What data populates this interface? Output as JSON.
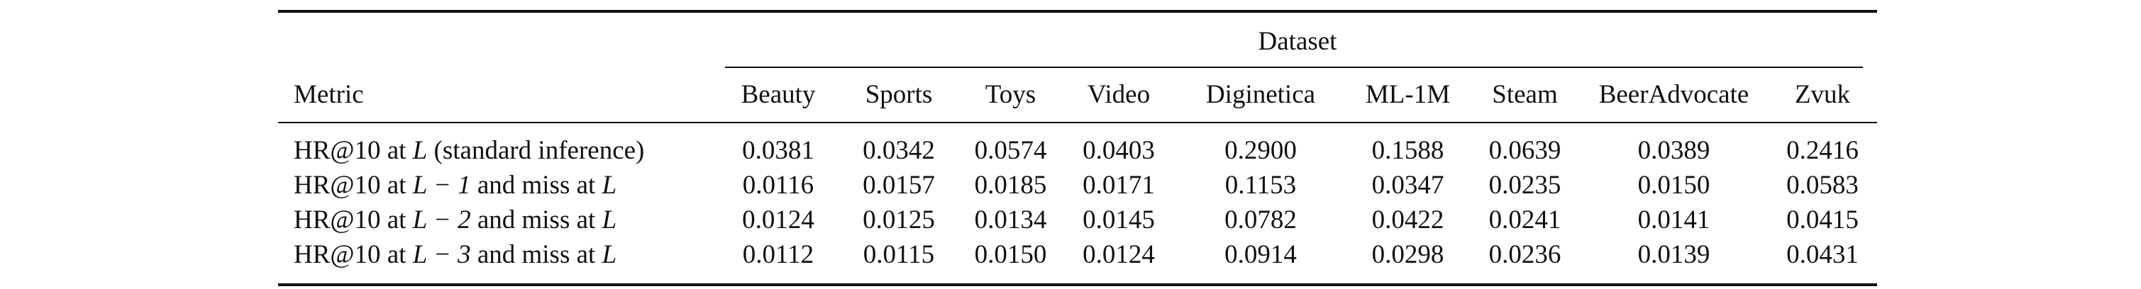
{
  "table": {
    "group_header": "Dataset",
    "metric_header": "Metric",
    "columns": [
      "Beauty",
      "Sports",
      "Toys",
      "Video",
      "Diginetica",
      "ML-1M",
      "Steam",
      "BeerAdvocate",
      "Zvuk"
    ],
    "rows": [
      {
        "metric_prefix": "HR@10 at ",
        "metric_var": "L",
        "metric_suffix": " (standard inference)",
        "values": [
          "0.0381",
          "0.0342",
          "0.0574",
          "0.0403",
          "0.2900",
          "0.1588",
          "0.0639",
          "0.0389",
          "0.2416"
        ]
      },
      {
        "metric_prefix": "HR@10 at ",
        "metric_var": "L − 1",
        "metric_suffix": " and miss at ",
        "metric_var2": "L",
        "values": [
          "0.0116",
          "0.0157",
          "0.0185",
          "0.0171",
          "0.1153",
          "0.0347",
          "0.0235",
          "0.0150",
          "0.0583"
        ]
      },
      {
        "metric_prefix": "HR@10 at ",
        "metric_var": "L − 2",
        "metric_suffix": " and miss at ",
        "metric_var2": "L",
        "values": [
          "0.0124",
          "0.0125",
          "0.0134",
          "0.0145",
          "0.0782",
          "0.0422",
          "0.0241",
          "0.0141",
          "0.0415"
        ]
      },
      {
        "metric_prefix": "HR@10 at ",
        "metric_var": "L − 3",
        "metric_suffix": " and miss at ",
        "metric_var2": "L",
        "values": [
          "0.0112",
          "0.0115",
          "0.0150",
          "0.0124",
          "0.0914",
          "0.0298",
          "0.0236",
          "0.0139",
          "0.0431"
        ]
      }
    ]
  }
}
